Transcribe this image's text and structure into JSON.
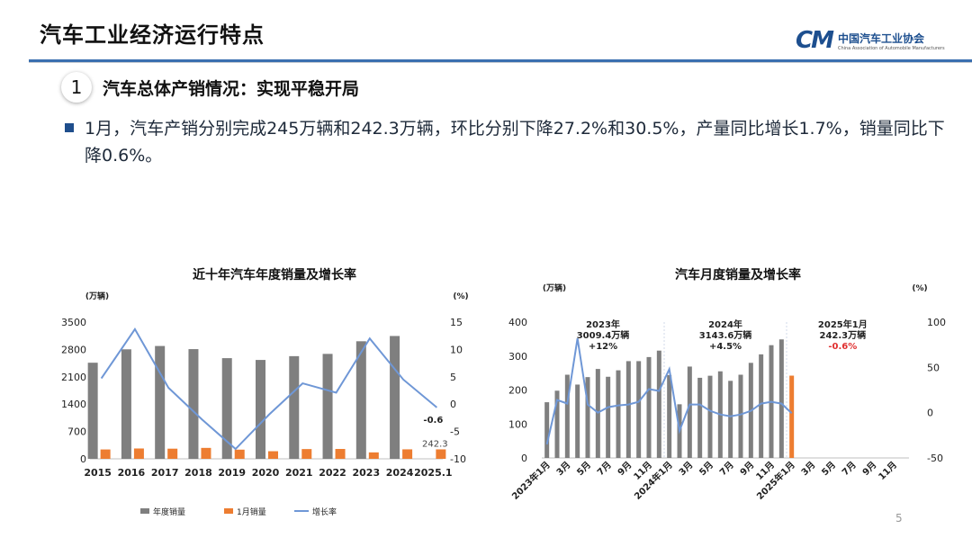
{
  "slide": {
    "title": "汽车工业经济运行特点",
    "logo_text": "中国汽车工业协会",
    "logo_sub": "China Association of Automobile Manufacturers",
    "logo_mark": "CM",
    "section_number": "1",
    "section_title": "汽车总体产销情况：实现平稳开局",
    "bullet": "1月，汽车产销分别完成245万辆和242.3万辆，环比分别下降27.2%和30.5%，产量同比增长1.7%，销量同比下降0.6%。",
    "page_number": "5"
  },
  "colors": {
    "grey_bar": "#7f7f7f",
    "orange_bar": "#ed7d31",
    "blue_line": "#6f97d6",
    "accent_red": "#e03030",
    "brand_blue": "#1d4f8f"
  },
  "chart_data": [
    {
      "type": "bar",
      "title": "近十年汽车年度销量及增长率",
      "left_unit": "(万辆)",
      "right_unit": "(%)",
      "categories": [
        "2015",
        "2016",
        "2017",
        "2018",
        "2019",
        "2020",
        "2021",
        "2022",
        "2023",
        "2024",
        "2025.1"
      ],
      "ylim": [
        0,
        3500
      ],
      "yticks": [
        "0",
        "700",
        "1400",
        "2100",
        "2800",
        "3500"
      ],
      "y2lim": [
        -10,
        15
      ],
      "y2ticks": [
        "-10",
        "-5",
        "0",
        "5",
        "10",
        "15"
      ],
      "series": [
        {
          "name": "年度销量",
          "values": [
            2460,
            2803,
            2888,
            2808,
            2577,
            2531,
            2628,
            2686,
            3009,
            3144,
            null
          ]
        },
        {
          "name": "1月销量",
          "values": [
            240,
            265,
            260,
            280,
            235,
            195,
            250,
            253,
            165,
            243,
            242.3
          ]
        },
        {
          "name": "增长率",
          "values": [
            4.7,
            13.7,
            3.0,
            -2.8,
            -8.2,
            -1.9,
            3.8,
            2.1,
            12.0,
            4.5,
            -0.6
          ]
        }
      ],
      "data_labels": [
        "-0.6",
        "242.3"
      ],
      "legend": [
        "年度销量",
        "1月销量",
        "增长率"
      ],
      "legend_position": "bottom",
      "grid": false
    },
    {
      "type": "bar",
      "title": "汽车月度销量及增长率",
      "left_unit": "(万辆)",
      "right_unit": "(%)",
      "x_labels": [
        "2023年1月",
        "3月",
        "5月",
        "7月",
        "9月",
        "11月",
        "2024年1月",
        "3月",
        "5月",
        "7月",
        "9月",
        "11月",
        "2025年1月",
        "3月",
        "5月",
        "7月",
        "9月",
        "11月"
      ],
      "ylim": [
        0,
        400
      ],
      "yticks": [
        "0",
        "100",
        "200",
        "300",
        "400"
      ],
      "y2lim": [
        -50,
        100
      ],
      "y2ticks": [
        "-50",
        "0",
        "50",
        "100"
      ],
      "series": [
        {
          "name": "月度销量",
          "values": [
            164,
            198,
            245,
            216,
            238,
            262,
            239,
            258,
            285,
            285,
            297,
            316,
            244,
            158,
            269,
            236,
            242,
            255,
            227,
            245,
            280,
            305,
            332,
            349,
            242.3
          ]
        },
        {
          "name": "增长率",
          "values": [
            -35,
            14,
            10,
            82,
            9,
            0,
            6,
            8,
            9,
            12,
            26,
            24,
            48,
            -20,
            9,
            9,
            2,
            -2,
            -4,
            -2,
            2,
            10,
            12,
            10,
            -0.6
          ]
        }
      ],
      "annotations": [
        {
          "lines": [
            "2023年",
            "3009.4万辆",
            "+12%"
          ]
        },
        {
          "lines": [
            "2024年",
            "3143.6万辆",
            "+4.5%"
          ]
        },
        {
          "lines": [
            "2025年1月",
            "242.3万辆",
            "-0.6%"
          ]
        }
      ],
      "grid": false
    }
  ]
}
